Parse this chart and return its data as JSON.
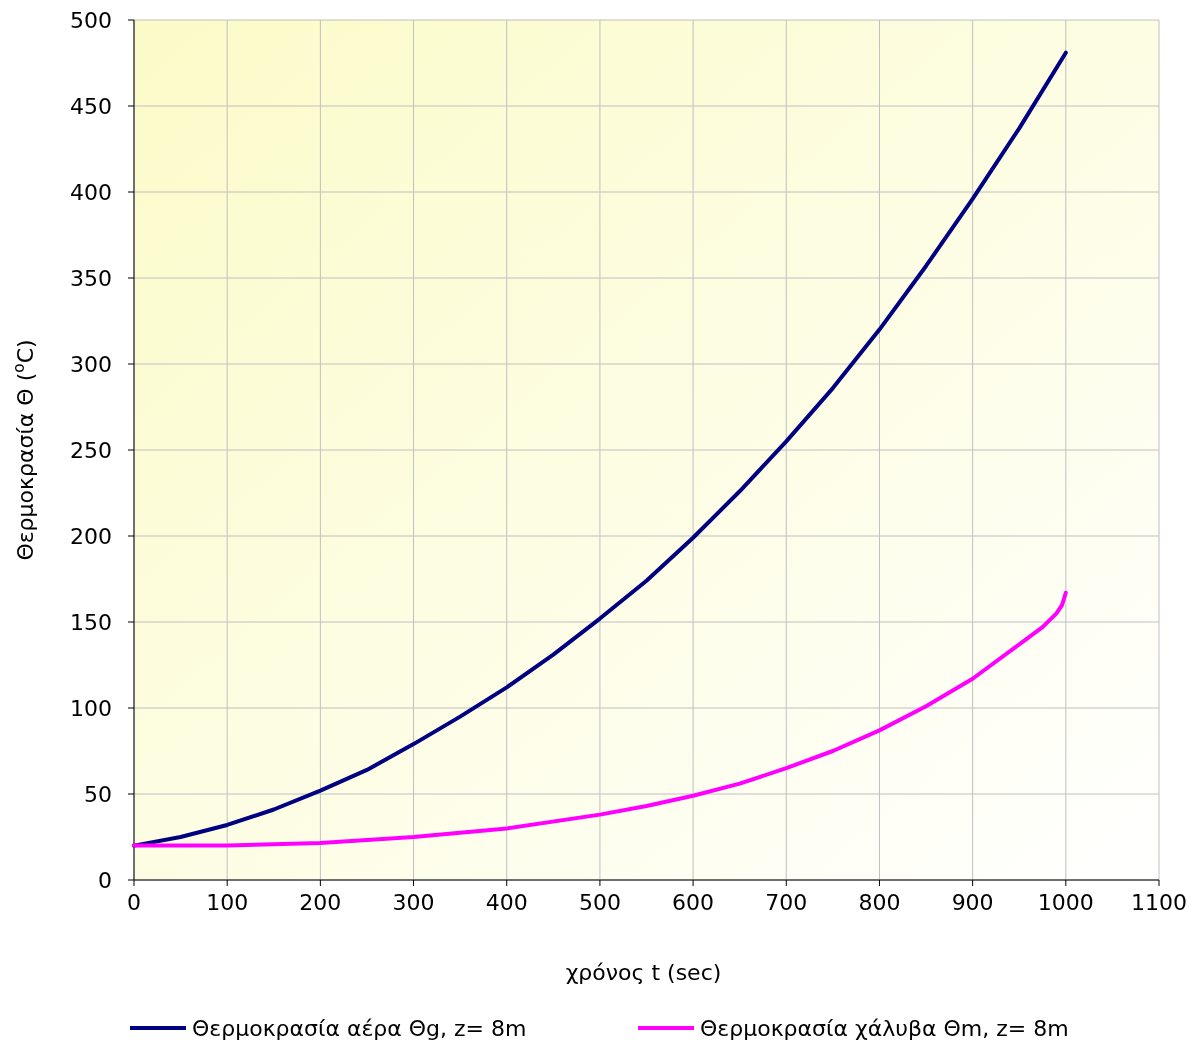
{
  "chart_data": {
    "type": "line",
    "xlabel": "χρόνος t (sec)",
    "ylabel": "Θερμοκρασία  Θ ($^{o}$C)",
    "xlim": [
      0,
      1100
    ],
    "xticks": [
      0,
      100,
      200,
      300,
      400,
      500,
      600,
      700,
      800,
      900,
      1000,
      1100
    ],
    "ylim": [
      0,
      500
    ],
    "yticks": [
      0,
      50,
      100,
      150,
      200,
      250,
      300,
      350,
      400,
      450,
      500
    ],
    "grid": true,
    "legend": "bottom",
    "marker": "none",
    "line_style": "solid",
    "series": [
      {
        "name": "Θερμοκρασία αέρα Θg, z= 8m",
        "color": "#000080",
        "x": [
          0,
          50,
          100,
          150,
          200,
          250,
          300,
          350,
          400,
          450,
          500,
          550,
          600,
          650,
          700,
          750,
          800,
          850,
          900,
          950,
          1000
        ],
        "values": [
          20,
          25,
          32,
          41,
          52,
          64,
          79,
          95,
          112,
          131,
          152,
          174,
          199,
          226,
          255,
          286,
          320,
          357,
          396,
          437,
          481
        ]
      },
      {
        "name": "Θερμοκρασία χάλυβα Θm, z= 8m",
        "color": "#ff00ff",
        "x": [
          0,
          100,
          200,
          300,
          400,
          500,
          550,
          600,
          650,
          700,
          750,
          800,
          850,
          900,
          950,
          975,
          990,
          996,
          1000
        ],
        "values": [
          20,
          20,
          21.5,
          25,
          30,
          38,
          43,
          49,
          56,
          65,
          75,
          87,
          101,
          117,
          137,
          147,
          155,
          160,
          167
        ]
      }
    ]
  }
}
